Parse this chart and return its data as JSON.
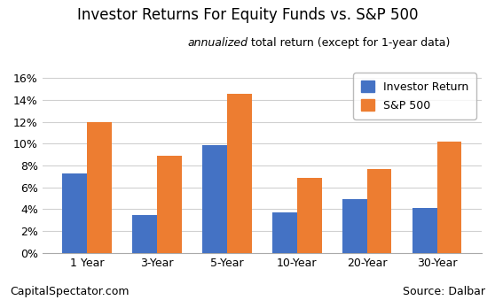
{
  "title": "Investor Returns For Equity Funds vs. S&P 500",
  "subtitle_italic": "annualized",
  "subtitle_rest": " total return (except for 1-year data)",
  "categories": [
    "1 Year",
    "3-Year",
    "5-Year",
    "10-Year",
    "20-Year",
    "30-Year"
  ],
  "investor_returns": [
    0.073,
    0.035,
    0.099,
    0.037,
    0.049,
    0.041
  ],
  "sp500_returns": [
    0.12,
    0.089,
    0.146,
    0.069,
    0.077,
    0.102
  ],
  "investor_color": "#4472C4",
  "sp500_color": "#ED7D31",
  "ylim": [
    0,
    0.17
  ],
  "yticks": [
    0.0,
    0.02,
    0.04,
    0.06,
    0.08,
    0.1,
    0.12,
    0.14,
    0.16
  ],
  "legend_labels": [
    "Investor Return",
    "S&P 500"
  ],
  "footer_left": "CapitalSpectator.com",
  "footer_right": "Source: Dalbar",
  "bar_width": 0.35,
  "background_color": "#ffffff",
  "grid_color": "#d0d0d0",
  "title_fontsize": 12,
  "subtitle_fontsize": 9,
  "axis_tick_fontsize": 9,
  "legend_fontsize": 9,
  "footer_fontsize": 9
}
